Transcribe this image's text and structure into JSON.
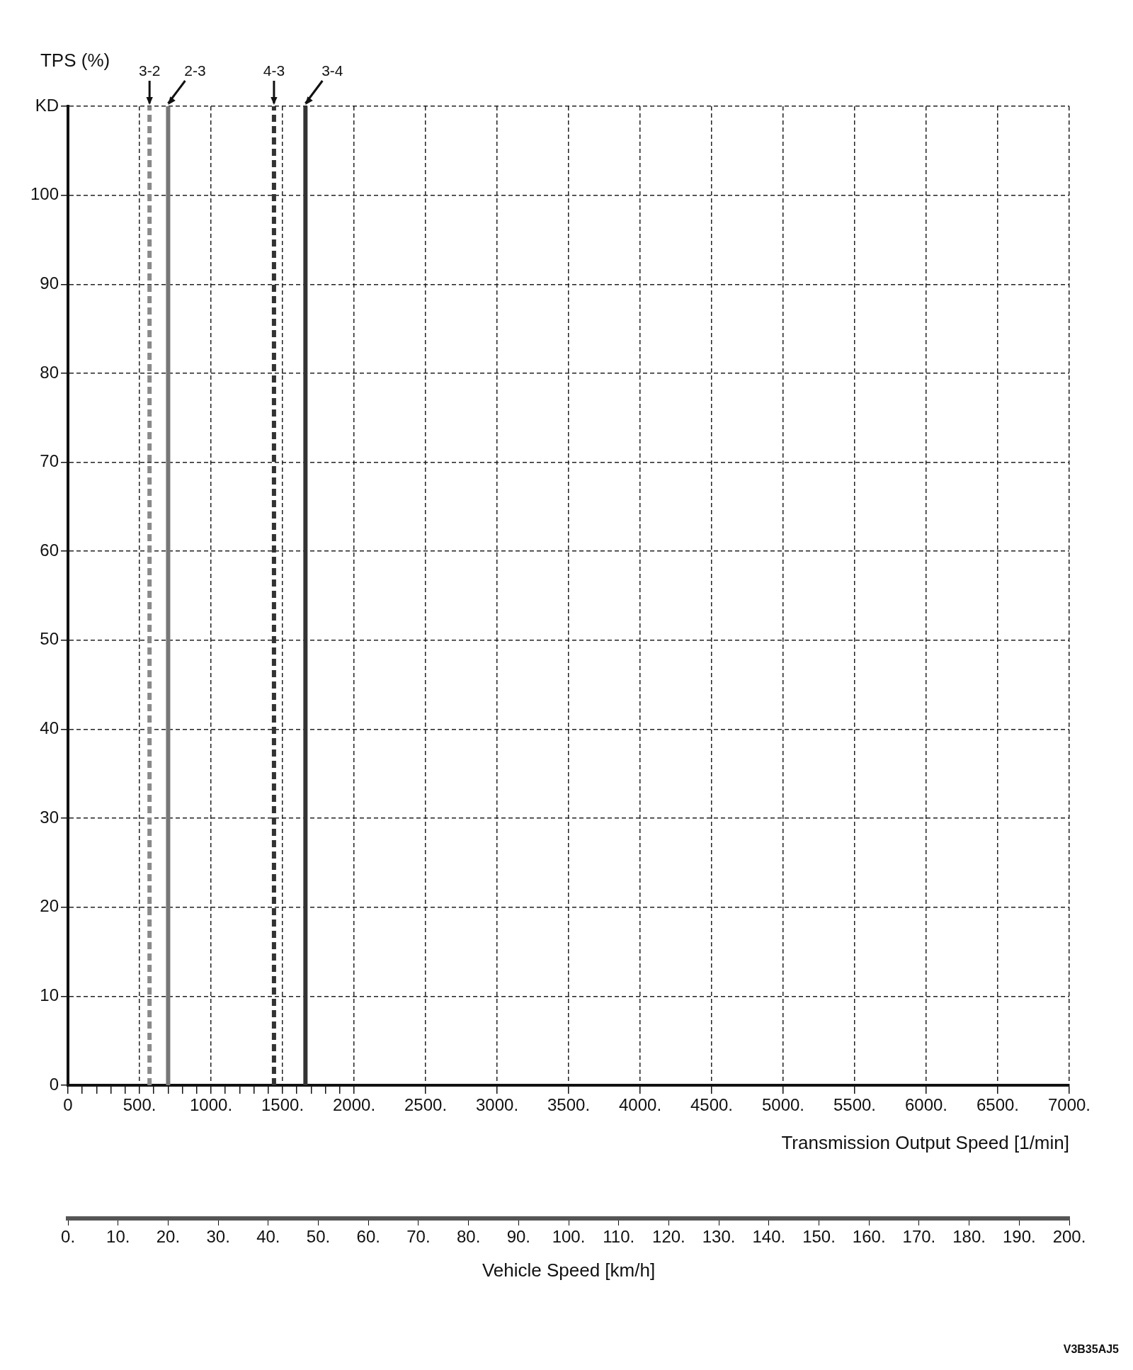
{
  "chart_data": {
    "type": "line",
    "ylabel": "TPS (%)",
    "xlabel": "Transmission Output Speed [1/min]",
    "x2label": "Vehicle Speed [km/h]",
    "xlim": [
      0,
      7000
    ],
    "xticks": [
      {
        "value": 0,
        "label": "0"
      },
      {
        "value": 100,
        "label": null
      },
      {
        "value": 200,
        "label": null
      },
      {
        "value": 300,
        "label": null
      },
      {
        "value": 400,
        "label": null
      },
      {
        "value": 500,
        "label": "500."
      },
      {
        "value": 600,
        "label": null
      },
      {
        "value": 700,
        "label": null
      },
      {
        "value": 800,
        "label": null
      },
      {
        "value": 900,
        "label": null
      },
      {
        "value": 1000,
        "label": "1000."
      },
      {
        "value": 1100,
        "label": null
      },
      {
        "value": 1200,
        "label": null
      },
      {
        "value": 1300,
        "label": null
      },
      {
        "value": 1400,
        "label": null
      },
      {
        "value": 1500,
        "label": "1500."
      },
      {
        "value": 1600,
        "label": null
      },
      {
        "value": 1700,
        "label": null
      },
      {
        "value": 1800,
        "label": null
      },
      {
        "value": 1900,
        "label": null
      },
      {
        "value": 2000,
        "label": "2000."
      },
      {
        "value": 2500,
        "label": "2500."
      },
      {
        "value": 3000,
        "label": "3000."
      },
      {
        "value": 3500,
        "label": "3500."
      },
      {
        "value": 4000,
        "label": "4000."
      },
      {
        "value": 4500,
        "label": "4500."
      },
      {
        "value": 5000,
        "label": "5000."
      },
      {
        "value": 5500,
        "label": "5500."
      },
      {
        "value": 6000,
        "label": "6000."
      },
      {
        "value": 6500,
        "label": "6500."
      },
      {
        "value": 7000,
        "label": "7000."
      }
    ],
    "x2lim": [
      0,
      200
    ],
    "x2ticks": [
      {
        "value": 0,
        "label": "0."
      },
      {
        "value": 10,
        "label": "10."
      },
      {
        "value": 20,
        "label": "20."
      },
      {
        "value": 30,
        "label": "30."
      },
      {
        "value": 40,
        "label": "40."
      },
      {
        "value": 50,
        "label": "50."
      },
      {
        "value": 60,
        "label": "60."
      },
      {
        "value": 70,
        "label": "70."
      },
      {
        "value": 80,
        "label": "80."
      },
      {
        "value": 90,
        "label": "90."
      },
      {
        "value": 100,
        "label": "100."
      },
      {
        "value": 110,
        "label": "110."
      },
      {
        "value": 120,
        "label": "120."
      },
      {
        "value": 130,
        "label": "130."
      },
      {
        "value": 140,
        "label": "140."
      },
      {
        "value": 150,
        "label": "150."
      },
      {
        "value": 160,
        "label": "160."
      },
      {
        "value": 170,
        "label": "170."
      },
      {
        "value": 180,
        "label": "180."
      },
      {
        "value": 190,
        "label": "190."
      },
      {
        "value": 200,
        "label": "200."
      }
    ],
    "ylim": [
      0,
      110
    ],
    "yticks": [
      0,
      10,
      20,
      30,
      40,
      50,
      60,
      70,
      80,
      90,
      100,
      {
        "value": 110,
        "label": "KD"
      }
    ],
    "grid": true,
    "legend": false,
    "marker": "none",
    "series": [
      {
        "name": "3-2",
        "color": "#8a8a8a",
        "x": [
          570,
          570
        ],
        "values": [
          0,
          110
        ],
        "line_style": "dashed"
      },
      {
        "name": "2-3",
        "color": "#777777",
        "x": [
          700,
          700
        ],
        "values": [
          0,
          110
        ],
        "line_style": "solid"
      },
      {
        "name": "4-3",
        "color": "#333333",
        "x": [
          1440,
          1440
        ],
        "values": [
          0,
          110
        ],
        "line_style": "dashed"
      },
      {
        "name": "3-4",
        "color": "#333333",
        "x": [
          1660,
          1660
        ],
        "values": [
          0,
          110
        ],
        "line_style": "solid"
      }
    ],
    "annotations": [
      "V3B35AJ5"
    ]
  }
}
